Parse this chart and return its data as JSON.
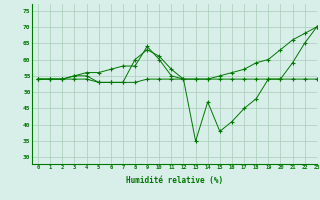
{
  "xlabel": "Humidité relative (%)",
  "xlim": [
    -0.5,
    23
  ],
  "ylim": [
    28,
    77
  ],
  "yticks": [
    30,
    35,
    40,
    45,
    50,
    55,
    60,
    65,
    70,
    75
  ],
  "xticks": [
    0,
    1,
    2,
    3,
    4,
    5,
    6,
    7,
    8,
    9,
    10,
    11,
    12,
    13,
    14,
    15,
    16,
    17,
    18,
    19,
    20,
    21,
    22,
    23
  ],
  "line_color": "#007700",
  "background_color": "#d8eee8",
  "grid_color": "#aaccbb",
  "line1_x": [
    0,
    1,
    2,
    3,
    4,
    5,
    6,
    7,
    8,
    9,
    10,
    11,
    12,
    13,
    14,
    15,
    16,
    17,
    18,
    19,
    20,
    21,
    22,
    23
  ],
  "line1_y": [
    54,
    54,
    54,
    55,
    55,
    53,
    53,
    53,
    60,
    63,
    61,
    57,
    54,
    35,
    47,
    38,
    41,
    45,
    48,
    54,
    54,
    59,
    65,
    70
  ],
  "line2_x": [
    0,
    1,
    2,
    3,
    4,
    5,
    6,
    7,
    8,
    9,
    10,
    11,
    12,
    13,
    14,
    15,
    16,
    17,
    18,
    19,
    20,
    21,
    22,
    23
  ],
  "line2_y": [
    54,
    54,
    54,
    55,
    56,
    56,
    57,
    58,
    58,
    64,
    60,
    55,
    54,
    54,
    54,
    55,
    56,
    57,
    59,
    60,
    63,
    66,
    68,
    70
  ],
  "line3_x": [
    0,
    1,
    2,
    3,
    4,
    5,
    6,
    7,
    8,
    9,
    10,
    11,
    12,
    13,
    14,
    15,
    16,
    17,
    18,
    19,
    20,
    21,
    22,
    23
  ],
  "line3_y": [
    54,
    54,
    54,
    54,
    54,
    53,
    53,
    53,
    53,
    54,
    54,
    54,
    54,
    54,
    54,
    54,
    54,
    54,
    54,
    54,
    54,
    54,
    54,
    54
  ]
}
